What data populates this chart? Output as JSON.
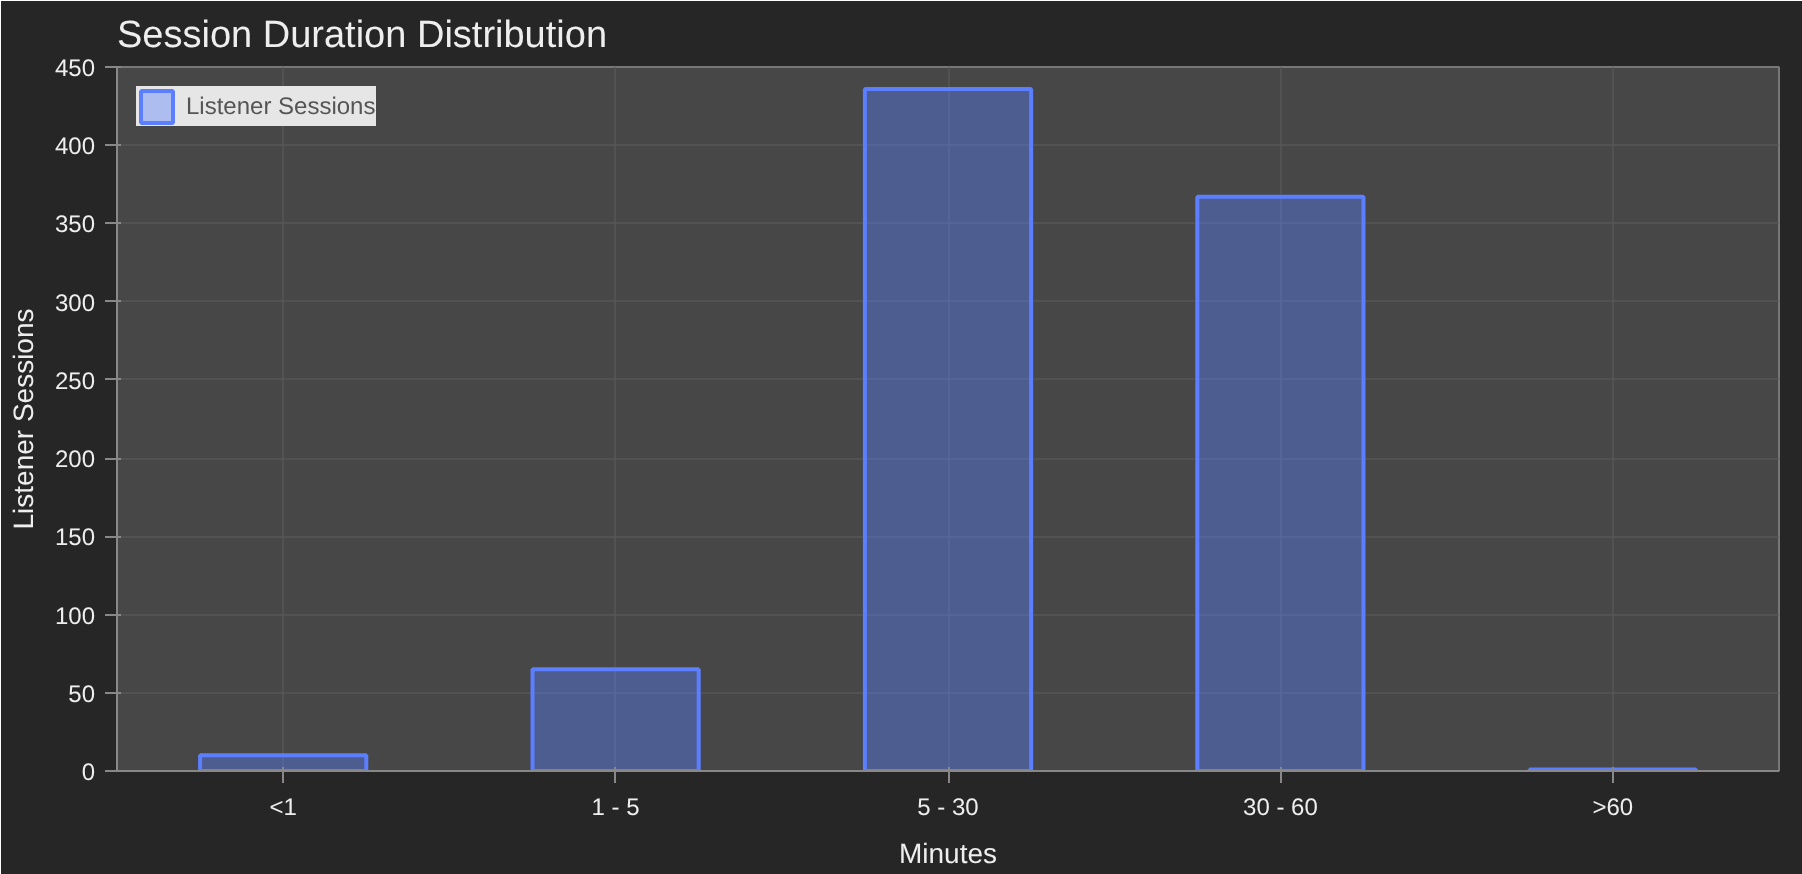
{
  "chart_data": {
    "type": "bar",
    "title": "Session Duration Distribution",
    "xlabel": "Minutes",
    "ylabel": "Listener Sessions",
    "categories": [
      "<1",
      "1 - 5",
      "5 - 30",
      "30 - 60",
      ">60"
    ],
    "series": [
      {
        "name": "Listener Sessions",
        "color": "#5b7fff",
        "values": [
          10,
          65,
          436,
          367,
          1
        ]
      }
    ],
    "ylim": [
      0,
      450
    ],
    "yticks": [
      0,
      50,
      100,
      150,
      200,
      250,
      300,
      350,
      400,
      450
    ],
    "grid": true,
    "legend": "top left"
  }
}
